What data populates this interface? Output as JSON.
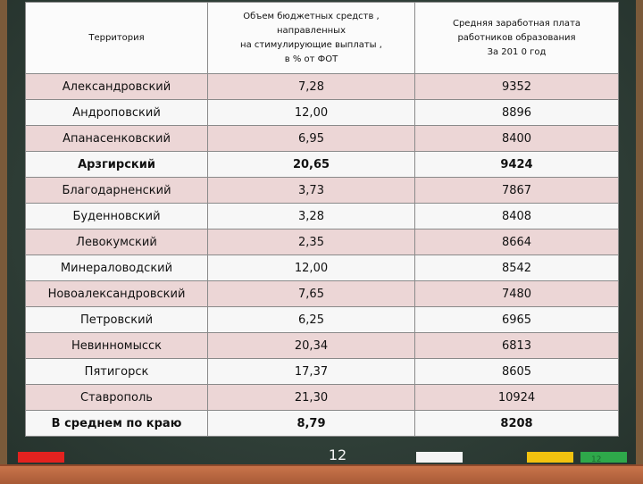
{
  "table": {
    "headers": {
      "territory": "Территория",
      "budget": "Объем бюджетных средств ,\nнаправленных\nна стимулирующие выплаты ,\nв % от ФОТ",
      "salary": "Средняя заработная плата\nработников образования\nЗа 201 0 год"
    },
    "rows": [
      {
        "name": "Александровский",
        "pct": "7,28",
        "salary": "9352"
      },
      {
        "name": "Андроповский",
        "pct": "12,00",
        "salary": "8896"
      },
      {
        "name": "Апанасенковский",
        "pct": "6,95",
        "salary": "8400"
      },
      {
        "name": "Арзгирский",
        "pct": "20,65",
        "salary": "9424"
      },
      {
        "name": "Благодарненский",
        "pct": "3,73",
        "salary": "7867"
      },
      {
        "name": "Буденновский",
        "pct": "3,28",
        "salary": "8408"
      },
      {
        "name": "Левокумский",
        "pct": "2,35",
        "salary": "8664"
      },
      {
        "name": "Минераловодский",
        "pct": "12,00",
        "salary": "8542"
      },
      {
        "name": "Новоалександровский",
        "pct": "7,65",
        "salary": "7480"
      },
      {
        "name": "Петровский",
        "pct": "6,25",
        "salary": "6965"
      },
      {
        "name": "Невинномысск",
        "pct": "20,34",
        "salary": "6813"
      },
      {
        "name": "Пятигорск",
        "pct": "17,37",
        "salary": "8605"
      },
      {
        "name": "Ставрополь",
        "pct": "21,30",
        "salary": "10924"
      },
      {
        "name": "В среднем по краю",
        "pct": "8,79",
        "salary": "8208"
      }
    ]
  },
  "slide_number": "12",
  "slide_number_small": "12",
  "colors": {
    "board": "#2f3e37",
    "tray": "#b8633d",
    "row_shade": "#ecd6d6",
    "chalk_red": "#e3221f",
    "chalk_white": "#f4f4f4",
    "chalk_yellow": "#f2c20f",
    "chalk_green": "#2ea84a"
  }
}
